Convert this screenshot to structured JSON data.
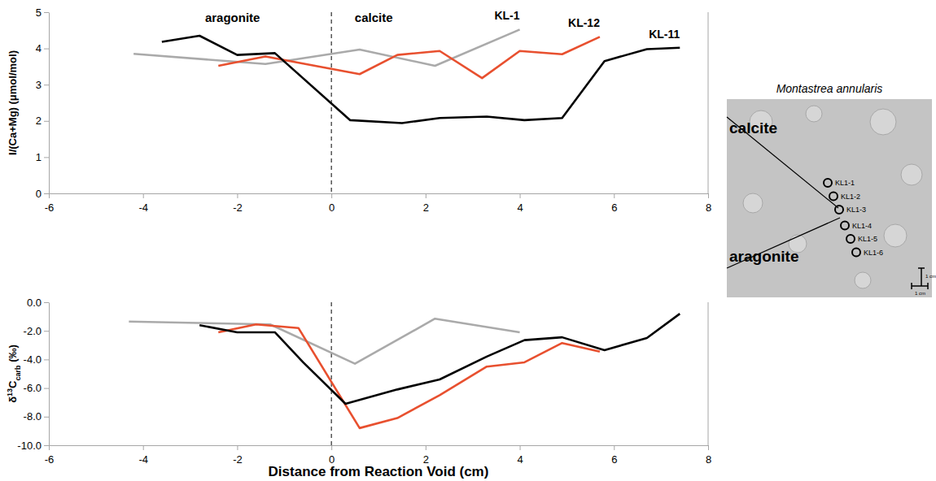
{
  "chart_data": [
    {
      "type": "line",
      "y_label": "I/(Ca+Mg)  (μmol/mol)",
      "xlim": [
        -6,
        8
      ],
      "xticks": [
        -6,
        -4,
        -2,
        0,
        2,
        4,
        6,
        8
      ],
      "ylim": [
        0,
        5
      ],
      "yticks": [
        0,
        1,
        2,
        3,
        4,
        5
      ],
      "vline": 0,
      "annotations": [
        {
          "text": "aragonite",
          "x": -2.1,
          "y": 4.72
        },
        {
          "text": "calcite",
          "x": 0.9,
          "y": 4.72
        }
      ],
      "series": [
        {
          "name": "KL-1",
          "color": "#aaaaaa",
          "x": [
            -4.2,
            -1.4,
            0.6,
            2.2,
            4.0
          ],
          "values": [
            3.85,
            3.57,
            3.97,
            3.52,
            4.52
          ]
        },
        {
          "name": "KL-12",
          "color": "#e8502f",
          "x": [
            -2.4,
            -1.4,
            -0.6,
            0.6,
            1.4,
            2.3,
            3.2,
            4.0,
            4.9,
            5.7
          ],
          "values": [
            3.52,
            3.78,
            3.58,
            3.29,
            3.82,
            3.93,
            3.18,
            3.93,
            3.84,
            4.32
          ]
        },
        {
          "name": "KL-11",
          "color": "#000000",
          "x": [
            -3.6,
            -2.8,
            -2.0,
            -1.2,
            0.4,
            1.5,
            2.3,
            3.3,
            4.1,
            4.9,
            5.8,
            6.7,
            7.4
          ],
          "values": [
            4.18,
            4.35,
            3.82,
            3.87,
            2.02,
            1.94,
            2.08,
            2.12,
            2.02,
            2.08,
            3.65,
            3.98,
            4.02
          ]
        }
      ]
    },
    {
      "type": "line",
      "y_label": "δ13Ccarb (‰)",
      "x_label": "Distance from Reaction Void (cm)",
      "xlim": [
        -6,
        8
      ],
      "xticks": [
        -6,
        -4,
        -2,
        0,
        2,
        4,
        6,
        8
      ],
      "ylim": [
        -10,
        0
      ],
      "yticks": [
        {
          "value": -10,
          "label": "-10.0"
        },
        {
          "value": -8,
          "label": "-8.0"
        },
        {
          "value": -6,
          "label": "-6.0"
        },
        {
          "value": -4,
          "label": "-4.0"
        },
        {
          "value": -2,
          "label": "-2.0"
        },
        {
          "value": 0,
          "label": "0.0"
        }
      ],
      "vline": 0,
      "series": [
        {
          "color": "#aaaaaa",
          "x": [
            -4.3,
            -1.3,
            0.5,
            2.2,
            4.0
          ],
          "values": [
            -1.35,
            -1.55,
            -4.3,
            -1.15,
            -2.1
          ]
        },
        {
          "color": "#e8502f",
          "x": [
            -2.4,
            -1.6,
            -0.7,
            0.6,
            1.4,
            2.3,
            3.3,
            4.1,
            4.9,
            5.7
          ],
          "values": [
            -2.1,
            -1.55,
            -1.8,
            -8.8,
            -8.1,
            -6.5,
            -4.5,
            -4.2,
            -2.85,
            -3.45
          ]
        },
        {
          "color": "#000000",
          "x": [
            -2.8,
            -2.0,
            -1.2,
            -0.6,
            0.3,
            1.4,
            2.3,
            3.3,
            4.1,
            4.9,
            5.8,
            6.7,
            7.4
          ],
          "values": [
            -1.6,
            -2.1,
            -2.1,
            -4.2,
            -7.1,
            -6.1,
            -5.4,
            -3.8,
            -2.65,
            -2.45,
            -3.35,
            -2.5,
            -0.8
          ]
        }
      ]
    }
  ],
  "inset": {
    "title": "Montastrea annularis",
    "labels": [
      "calcite",
      "aragonite"
    ],
    "samples": [
      "KL1-1",
      "KL1-2",
      "KL1-3",
      "KL1-4",
      "KL1-5",
      "KL1-6"
    ],
    "scale_bar": [
      "1 cm",
      "1 cm"
    ]
  }
}
